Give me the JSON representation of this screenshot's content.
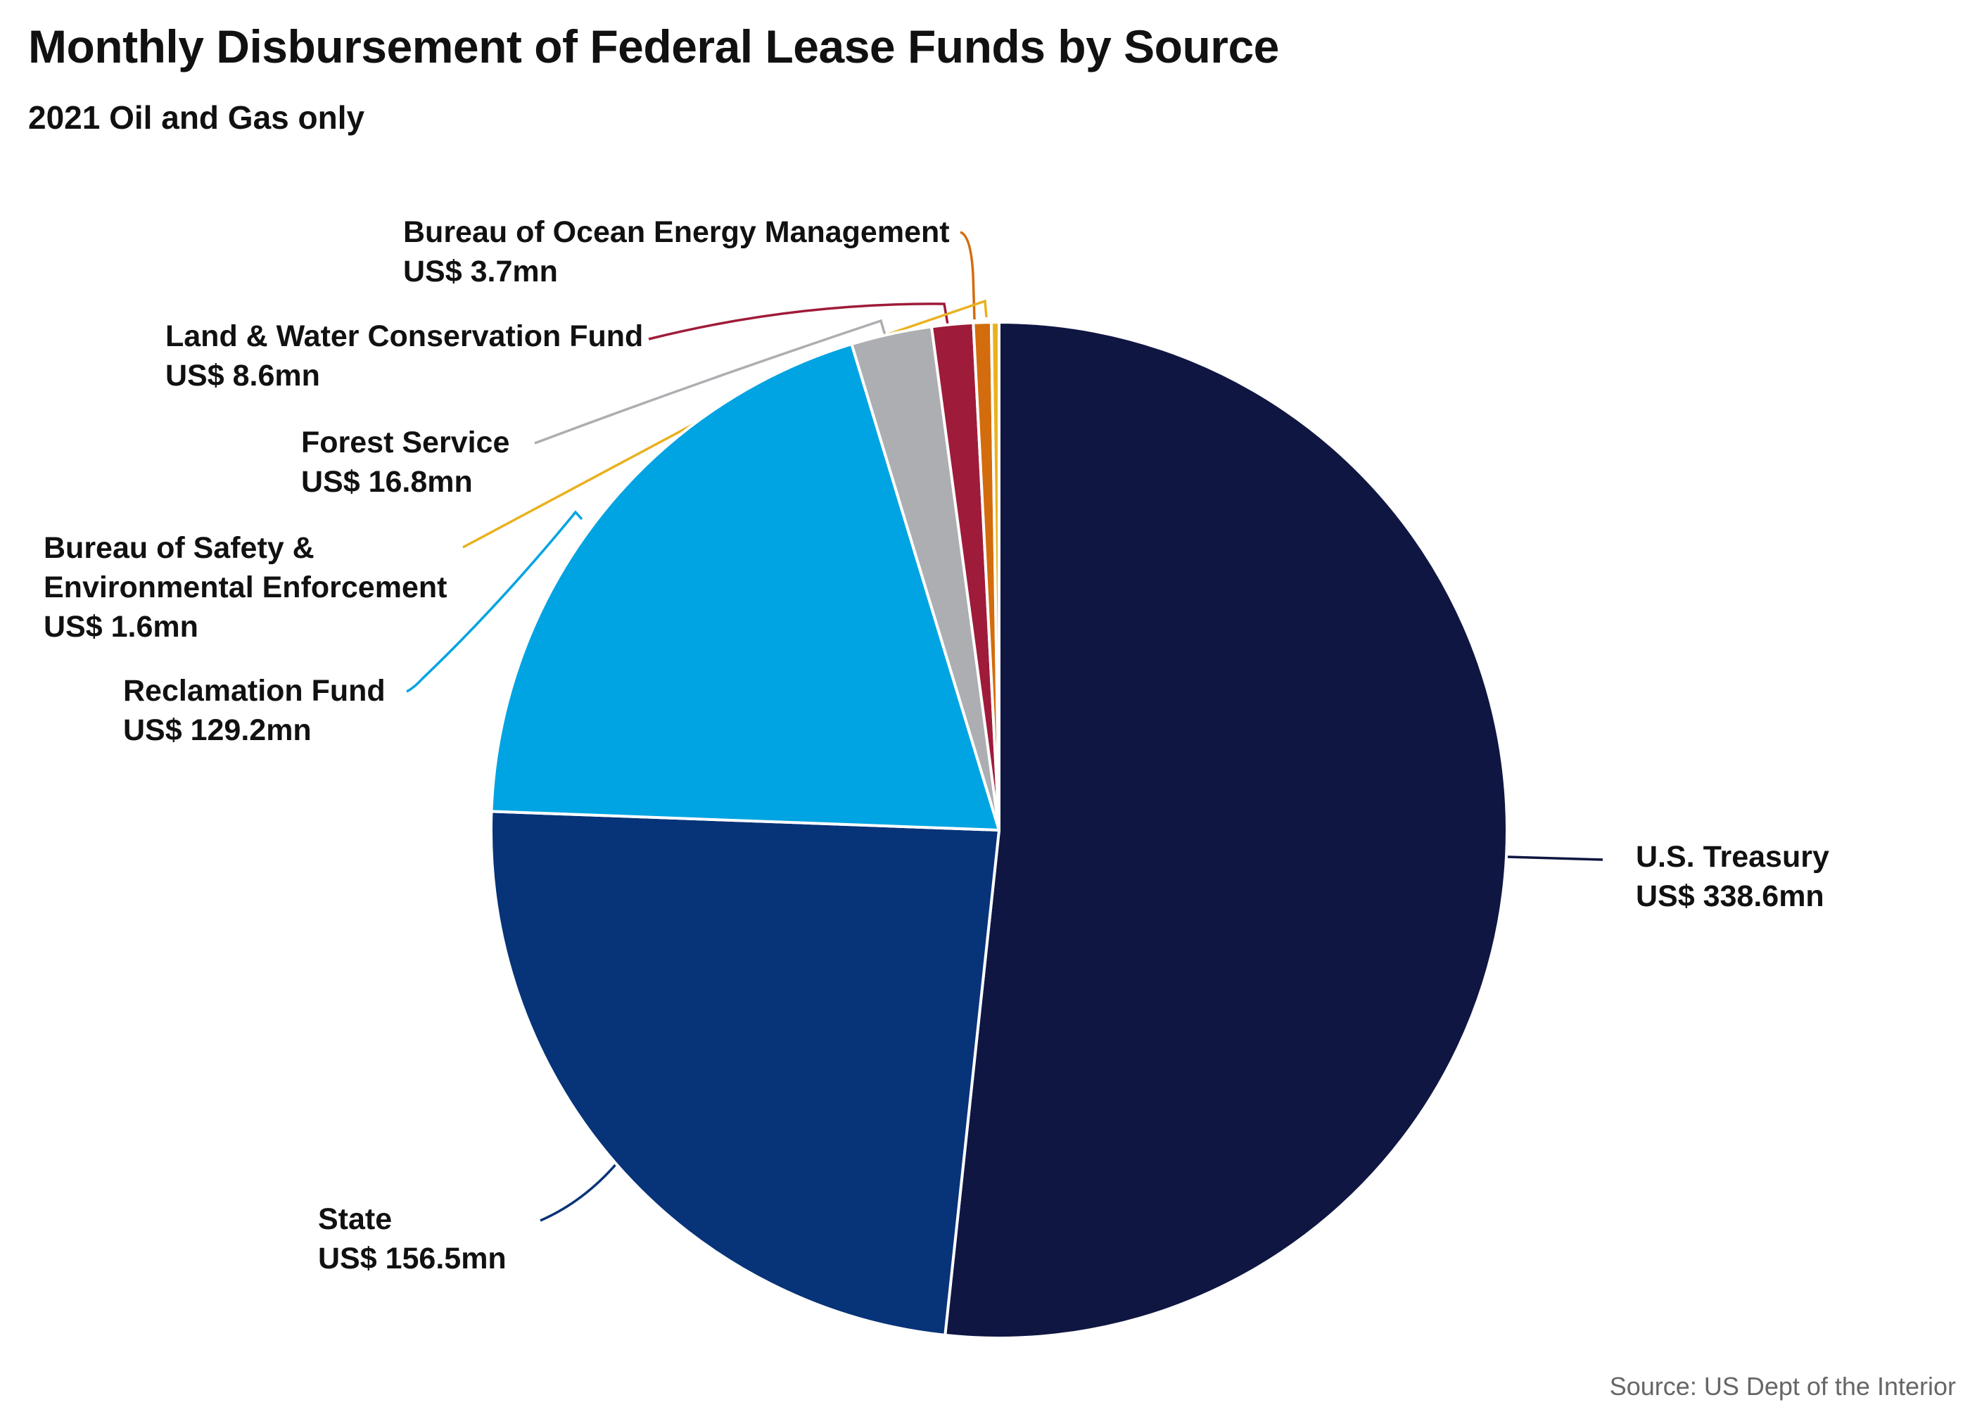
{
  "chart_data": {
    "type": "pie",
    "title": "Monthly Disbursement of Federal Lease Funds by Source",
    "subtitle": "2021 Oil and Gas only",
    "unit": "US$ mn",
    "start": "12 o'clock",
    "direction": "clockwise",
    "slices": [
      {
        "id": "treasury",
        "name": "U.S. Treasury",
        "value": 338.6,
        "value_label": "US$ 338.6mn",
        "color": "#0f1642",
        "label_lines": [
          "U.S. Treasury"
        ]
      },
      {
        "id": "state",
        "name": "State",
        "value": 156.5,
        "value_label": "US$ 156.5mn",
        "color": "#073378",
        "label_lines": [
          "State"
        ]
      },
      {
        "id": "reclamation",
        "name": "Reclamation Fund",
        "value": 129.2,
        "value_label": "US$ 129.2mn",
        "color": "#00a4e2",
        "label_lines": [
          "Reclamation Fund"
        ]
      },
      {
        "id": "forest",
        "name": "Forest Service",
        "value": 16.8,
        "value_label": "US$ 16.8mn",
        "color": "#adaeb1",
        "label_lines": [
          "Forest Service"
        ]
      },
      {
        "id": "lwcf",
        "name": "Land & Water Conservation Fund",
        "value": 8.6,
        "value_label": "US$ 8.6mn",
        "color": "#9f1b3a",
        "label_lines": [
          "Land & Water Conservation Fund"
        ]
      },
      {
        "id": "boem",
        "name": "Bureau of Ocean Energy Management",
        "value": 3.7,
        "value_label": "US$ 3.7mn",
        "color": "#d36c0d",
        "label_lines": [
          "Bureau of Ocean Energy Management"
        ]
      },
      {
        "id": "bsee",
        "name": "Bureau of Safety & Environmental Enforcement",
        "value": 1.6,
        "value_label": "US$ 1.6mn",
        "color": "#eab11f",
        "label_lines": [
          "Bureau of Safety &",
          "Environmental Enforcement"
        ]
      }
    ],
    "source": "Source: US Dept of the Interior"
  }
}
